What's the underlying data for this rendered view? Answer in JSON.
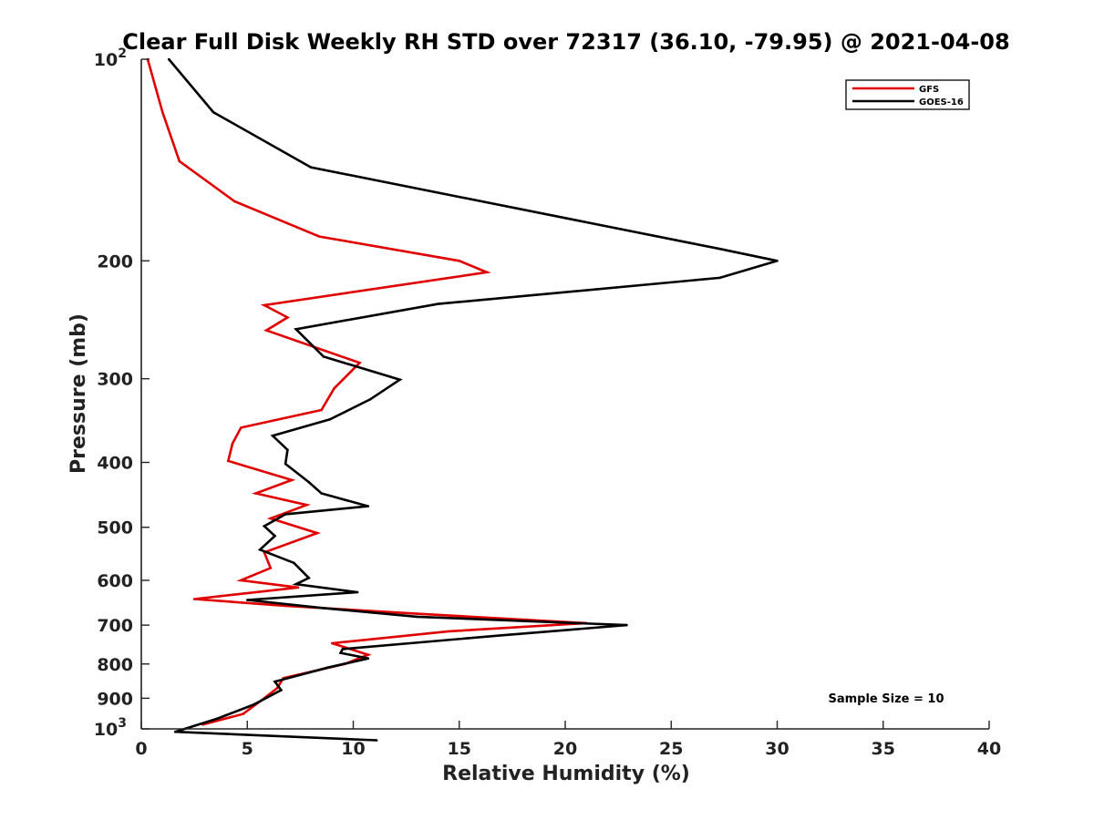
{
  "chart_data": {
    "type": "line",
    "title": "Clear Full Disk Weekly RH STD over 72317 (36.10, -79.95) @ 2021-04-08",
    "xlabel": "Relative Humidity (%)",
    "ylabel": "Pressure (mb)",
    "xlim": [
      0,
      40
    ],
    "ylim": [
      100,
      1000
    ],
    "y_scale": "log",
    "y_inverted": true,
    "x_ticks": [
      "0",
      "5",
      "10",
      "15",
      "20",
      "25",
      "30",
      "35",
      "40"
    ],
    "y_ticks": [
      {
        "value": 100,
        "label": "10",
        "sup": "2"
      },
      {
        "value": 200,
        "label": "200",
        "sup": ""
      },
      {
        "value": 300,
        "label": "300",
        "sup": ""
      },
      {
        "value": 400,
        "label": "400",
        "sup": ""
      },
      {
        "value": 500,
        "label": "500",
        "sup": ""
      },
      {
        "value": 600,
        "label": "600",
        "sup": ""
      },
      {
        "value": 700,
        "label": "700",
        "sup": ""
      },
      {
        "value": 800,
        "label": "800",
        "sup": ""
      },
      {
        "value": 900,
        "label": "900",
        "sup": ""
      },
      {
        "value": 1000,
        "label": "10",
        "sup": "3"
      }
    ],
    "grid": false,
    "legend_position": "top-right",
    "annotation": "Sample Size = 10",
    "series": [
      {
        "name": "GFS",
        "color": "#e00000",
        "points": [
          [
            0.3,
            100
          ],
          [
            1.0,
            120
          ],
          [
            1.8,
            142
          ],
          [
            4.4,
            163
          ],
          [
            8.4,
            184
          ],
          [
            15.0,
            200
          ],
          [
            16.3,
            208
          ],
          [
            5.8,
            233
          ],
          [
            6.9,
            243
          ],
          [
            5.9,
            254
          ],
          [
            10.3,
            284
          ],
          [
            9.1,
            310
          ],
          [
            8.5,
            334
          ],
          [
            4.7,
            355
          ],
          [
            4.3,
            375
          ],
          [
            4.1,
            398
          ],
          [
            7.1,
            425
          ],
          [
            5.4,
            445
          ],
          [
            7.8,
            463
          ],
          [
            6.1,
            485
          ],
          [
            8.3,
            510
          ],
          [
            5.8,
            545
          ],
          [
            6.0,
            565
          ],
          [
            6.1,
            575
          ],
          [
            4.7,
            600
          ],
          [
            7.4,
            615
          ],
          [
            2.5,
            640
          ],
          [
            6.8,
            655
          ],
          [
            13.0,
            673
          ],
          [
            21.0,
            695
          ],
          [
            14.5,
            715
          ],
          [
            9.0,
            745
          ],
          [
            10.7,
            775
          ],
          [
            9.6,
            800
          ],
          [
            6.7,
            840
          ],
          [
            6.4,
            870
          ],
          [
            5.7,
            905
          ],
          [
            4.8,
            950
          ],
          [
            2.9,
            985
          ]
        ]
      },
      {
        "name": "GOES-16",
        "color": "#000000",
        "points": [
          [
            1.3,
            100
          ],
          [
            3.4,
            120
          ],
          [
            8.0,
            145
          ],
          [
            27.3,
            192
          ],
          [
            30.0,
            200
          ],
          [
            27.3,
            212
          ],
          [
            14.0,
            232
          ],
          [
            7.3,
            253
          ],
          [
            8.6,
            278
          ],
          [
            12.2,
            301
          ],
          [
            10.8,
            322
          ],
          [
            8.9,
            345
          ],
          [
            6.2,
            365
          ],
          [
            6.9,
            383
          ],
          [
            6.8,
            402
          ],
          [
            7.9,
            428
          ],
          [
            8.5,
            445
          ],
          [
            10.7,
            465
          ],
          [
            6.8,
            478
          ],
          [
            5.8,
            498
          ],
          [
            6.3,
            515
          ],
          [
            5.6,
            540
          ],
          [
            7.2,
            565
          ],
          [
            7.9,
            595
          ],
          [
            7.3,
            608
          ],
          [
            10.2,
            625
          ],
          [
            5.0,
            642
          ],
          [
            8.6,
            660
          ],
          [
            13.0,
            680
          ],
          [
            22.9,
            700
          ],
          [
            17.0,
            725
          ],
          [
            9.5,
            760
          ],
          [
            9.4,
            770
          ],
          [
            10.7,
            785
          ],
          [
            8.8,
            810
          ],
          [
            6.3,
            850
          ],
          [
            6.6,
            875
          ],
          [
            5.3,
            920
          ],
          [
            3.6,
            965
          ],
          [
            1.6,
            1010
          ],
          [
            11.1,
            1040
          ]
        ]
      }
    ]
  }
}
